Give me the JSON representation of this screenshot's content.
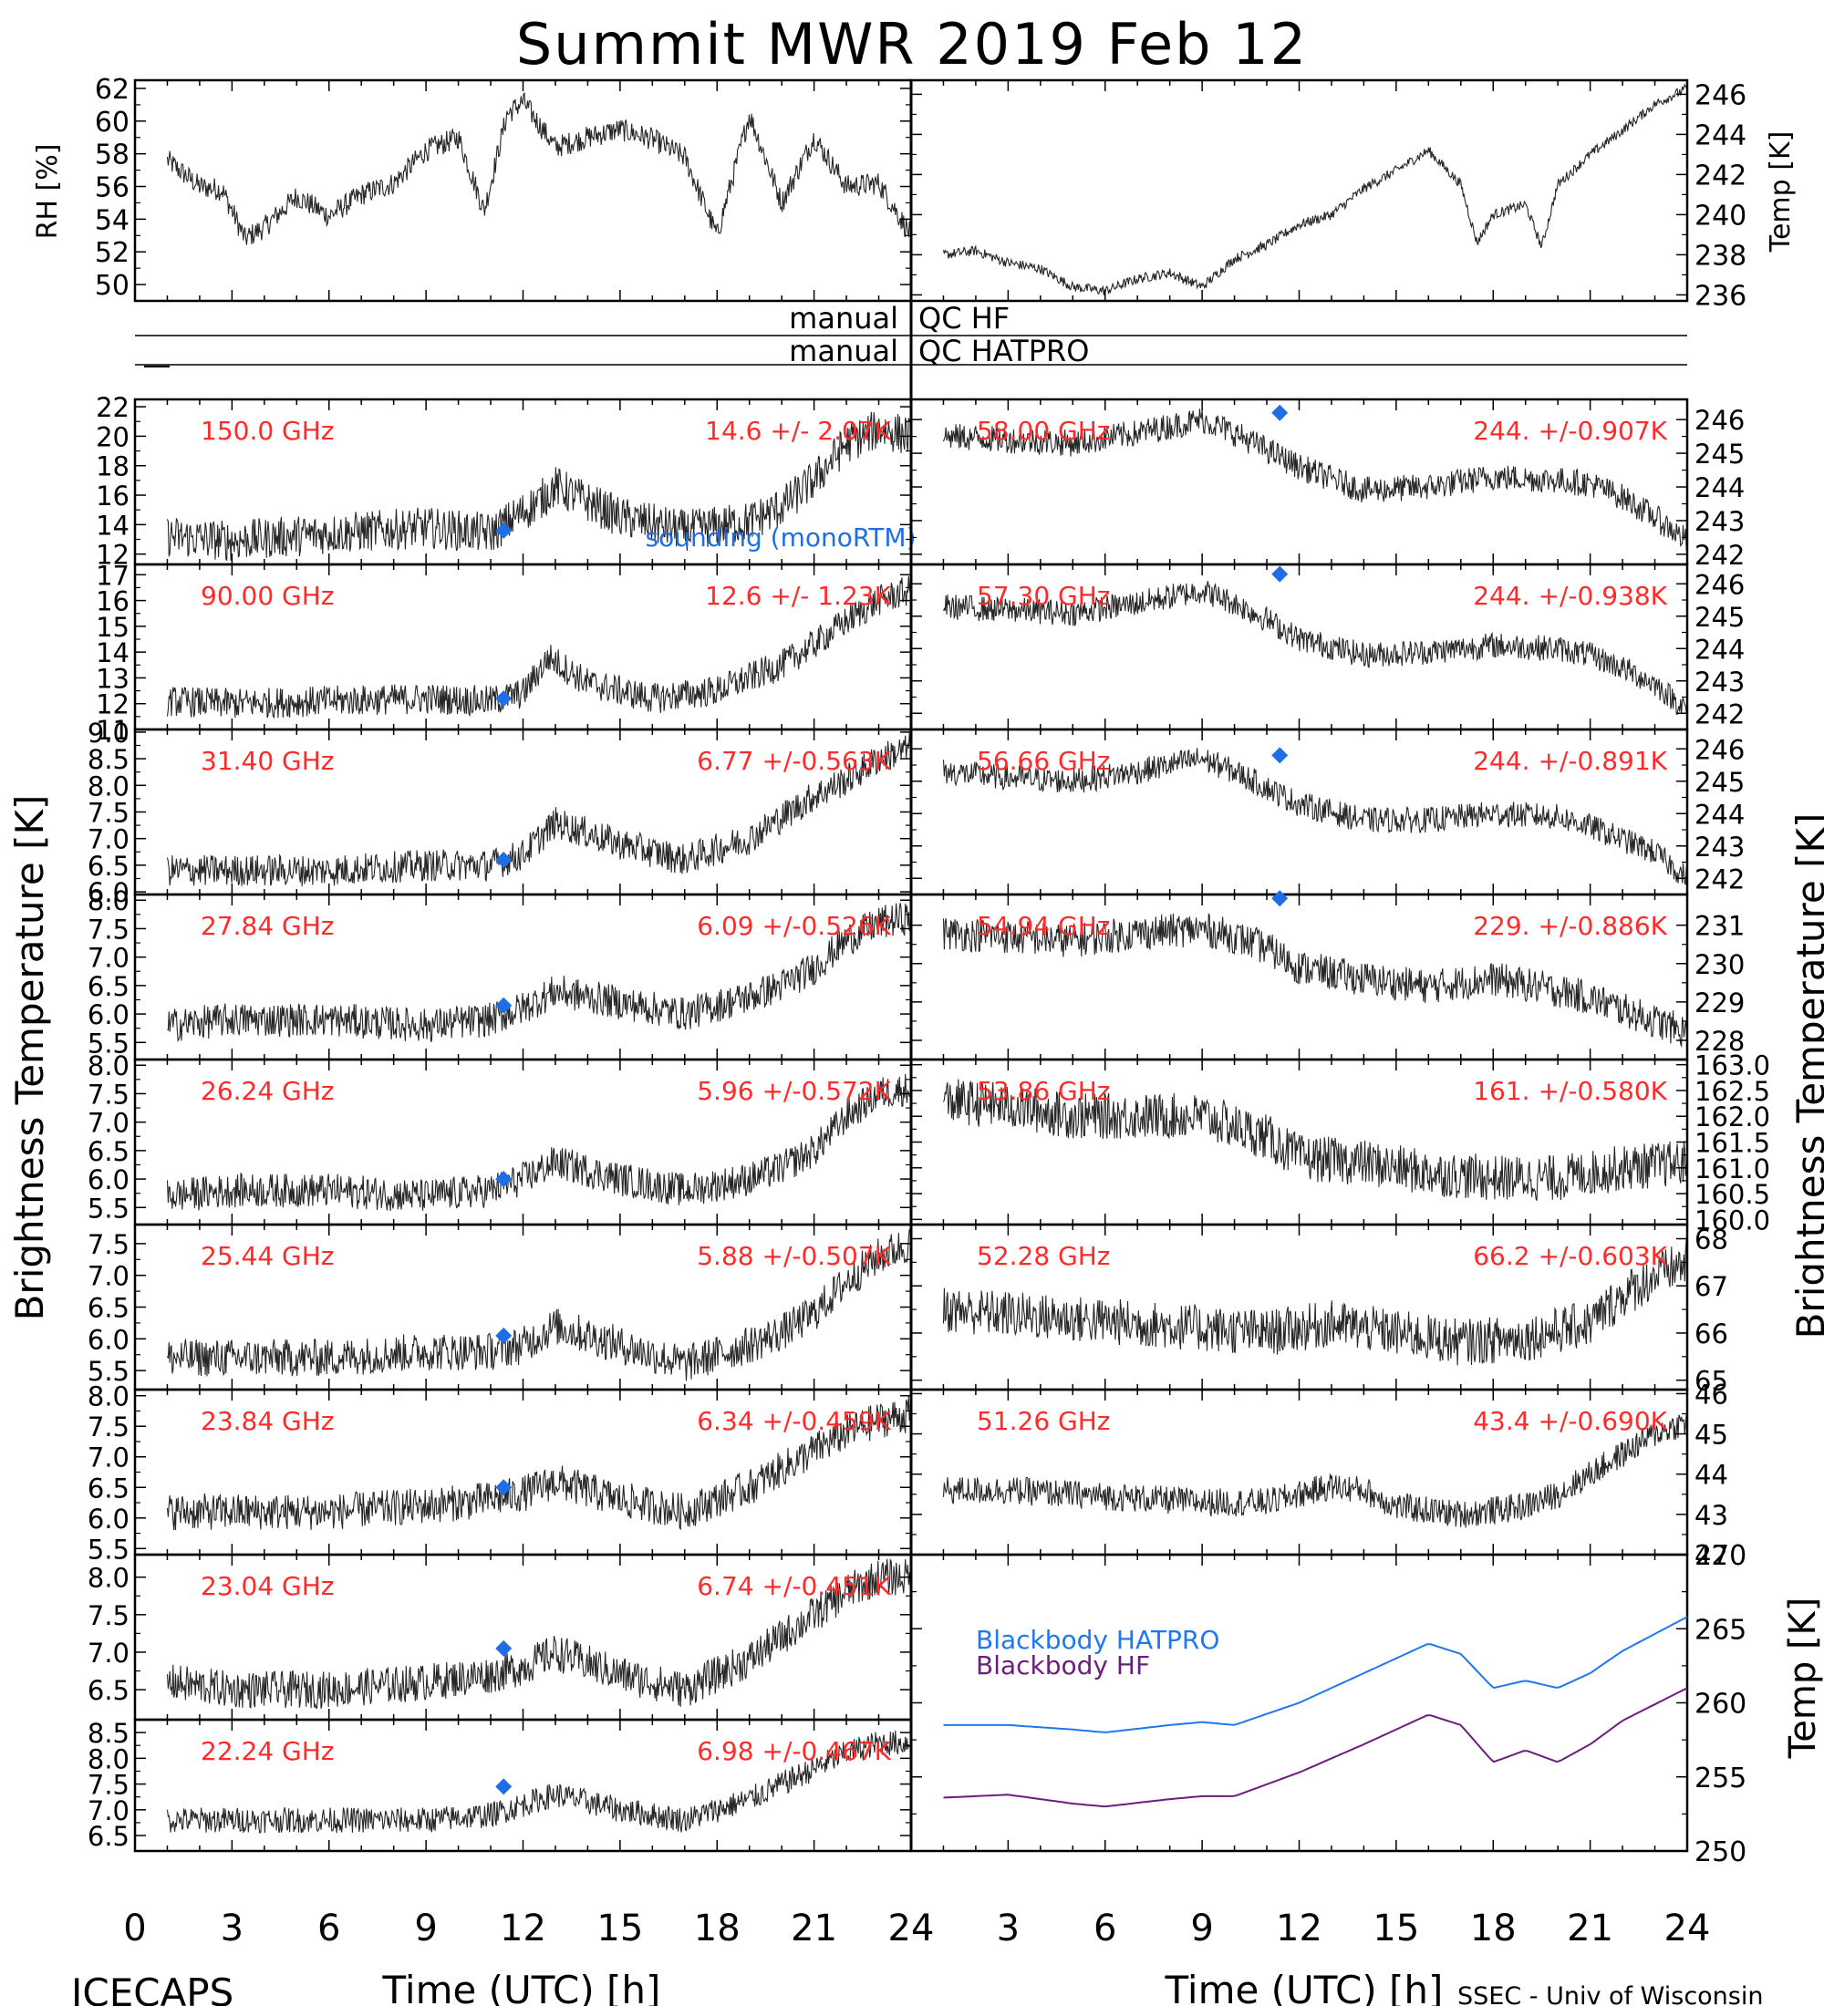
{
  "title": "Summit MWR 2019 Feb 12",
  "footer": {
    "left": "ICECAPS",
    "right": "SSEC - Univ of Wisconsin",
    "xlabel": "Time (UTC) [h]"
  },
  "side_labels": {
    "left": "Brightness Temperature [K]",
    "right": "Brightness Temperature [K]",
    "right_bottom": "Temp [K]"
  },
  "qc": {
    "hf_manual": "manual",
    "hf_label": "QC HF",
    "hatpro_manual": "manual",
    "hatpro_label": "QC HATPRO"
  },
  "colors": {
    "data": "#000000",
    "label": "#ff2a2a",
    "sounding": "#1e6fe6",
    "bb_hatpro": "#1e78f0",
    "bb_hf": "#6a1f7a"
  },
  "chart_data": [
    {
      "id": "rh",
      "type": "line",
      "ylabel": "RH [%]",
      "ylim": [
        49,
        62.5
      ],
      "xlim": [
        0,
        24
      ],
      "yticks": [
        50,
        52,
        54,
        56,
        58,
        60,
        62
      ],
      "x": [
        1.0,
        2.0,
        2.7,
        3.4,
        4.0,
        5.0,
        6.0,
        7.0,
        8.0,
        9.0,
        10.0,
        10.8,
        11.5,
        12.0,
        13.0,
        14.0,
        15.0,
        16.0,
        17.0,
        18.0,
        19.0,
        20.0,
        21.0,
        22.0,
        23.0,
        24.0
      ],
      "values": [
        57.6,
        56.0,
        55.8,
        52.8,
        53.5,
        55.4,
        54.2,
        55.5,
        56.2,
        58.2,
        59.0,
        54.5,
        60.4,
        61.2,
        58.4,
        59.0,
        59.5,
        58.9,
        57.8,
        53.0,
        60.4,
        55.0,
        59.0,
        56.0,
        56.2,
        53.0
      ]
    },
    {
      "id": "temp",
      "type": "line",
      "ylabel": "Temp [K]",
      "ylim": [
        235.7,
        246.7
      ],
      "xlim": [
        0,
        24
      ],
      "yticks": [
        236,
        238,
        240,
        242,
        244,
        246
      ],
      "x": [
        1.0,
        2.0,
        3.0,
        4.0,
        5.0,
        6.0,
        7.0,
        8.0,
        9.0,
        10.0,
        11.0,
        12.0,
        13.0,
        14.0,
        15.0,
        16.0,
        17.0,
        17.5,
        18.0,
        19.0,
        19.5,
        20.0,
        21.0,
        22.0,
        23.0,
        24.0
      ],
      "values": [
        238.0,
        238.2,
        237.6,
        237.3,
        236.4,
        236.2,
        236.8,
        237.1,
        236.4,
        237.8,
        238.5,
        239.5,
        240.0,
        241.3,
        242.2,
        243.2,
        241.5,
        238.6,
        240.0,
        240.5,
        238.4,
        241.5,
        243.0,
        244.2,
        245.5,
        246.3
      ]
    },
    {
      "id": "f150",
      "type": "line",
      "freq": "150.0 GHz",
      "stats": "14.6 +/-  2.07K",
      "ylim": [
        11.3,
        22.5
      ],
      "yticks": [
        12,
        14,
        16,
        18,
        20,
        22
      ],
      "sounding": {
        "x": 11.4,
        "y": 13.6
      },
      "noise": 1.4,
      "sounding_label": "sounding (monoRTM)",
      "x": [
        1,
        3,
        6,
        9,
        11,
        12.5,
        13,
        15,
        17,
        19,
        20,
        21,
        22,
        23,
        24
      ],
      "values": [
        13.2,
        12.9,
        13.4,
        13.8,
        13.4,
        15.6,
        16.6,
        14.5,
        13.6,
        14.2,
        15.2,
        17.0,
        19.5,
        20.5,
        20.0
      ]
    },
    {
      "id": "f90",
      "type": "line",
      "freq": "90.00 GHz",
      "stats": "12.6 +/-  1.23K",
      "ylim": [
        11.0,
        17.4
      ],
      "yticks": [
        11,
        12,
        13,
        14,
        15,
        16,
        17
      ],
      "sounding": {
        "x": 11.4,
        "y": 12.2
      },
      "noise": 0.6,
      "x": [
        1,
        3,
        6,
        9,
        11,
        12,
        12.8,
        14,
        16,
        18,
        20,
        21,
        22,
        23,
        24
      ],
      "values": [
        12.1,
        12.0,
        12.1,
        12.2,
        12.1,
        12.4,
        13.8,
        12.8,
        12.2,
        12.5,
        13.5,
        14.3,
        15.2,
        16.0,
        16.4
      ]
    },
    {
      "id": "f31",
      "type": "line",
      "freq": "31.40 GHz",
      "stats": "6.77 +/-0.563K",
      "ylim": [
        5.95,
        9.05
      ],
      "yticks": [
        6.0,
        6.5,
        7.0,
        7.5,
        8.0,
        8.5,
        9.0
      ],
      "sounding": {
        "x": 11.4,
        "y": 6.6
      },
      "noise": 0.3,
      "x": [
        1,
        3,
        6,
        9,
        11,
        12,
        13,
        15,
        17,
        19,
        20,
        21,
        22,
        23,
        24
      ],
      "values": [
        6.4,
        6.4,
        6.4,
        6.5,
        6.5,
        6.7,
        7.3,
        6.9,
        6.6,
        7.0,
        7.4,
        7.8,
        8.1,
        8.5,
        8.7
      ]
    },
    {
      "id": "f2784",
      "type": "line",
      "freq": "27.84 GHz",
      "stats": "6.09 +/-0.526K",
      "ylim": [
        5.2,
        8.1
      ],
      "yticks": [
        5.5,
        6.0,
        6.5,
        7.0,
        7.5,
        8.0
      ],
      "sounding": {
        "x": 11.4,
        "y": 6.15
      },
      "noise": 0.3,
      "x": [
        1,
        3,
        6,
        9,
        11,
        12,
        13,
        15,
        17,
        19,
        20,
        21,
        22,
        23,
        24
      ],
      "values": [
        5.8,
        5.9,
        5.9,
        5.8,
        5.9,
        6.1,
        6.4,
        6.2,
        6.0,
        6.3,
        6.5,
        6.8,
        7.3,
        7.6,
        7.7
      ]
    },
    {
      "id": "f2624",
      "type": "line",
      "freq": "26.24 GHz",
      "stats": "5.96 +/-0.572K",
      "ylim": [
        5.2,
        8.1
      ],
      "yticks": [
        5.5,
        6.0,
        6.5,
        7.0,
        7.5,
        8.0
      ],
      "sounding": {
        "x": 11.4,
        "y": 6.0
      },
      "noise": 0.3,
      "x": [
        1,
        3,
        6,
        9,
        11,
        12,
        13,
        15,
        17,
        19,
        20,
        21,
        22,
        23,
        24
      ],
      "values": [
        5.7,
        5.8,
        5.8,
        5.7,
        5.8,
        6.0,
        6.3,
        6.0,
        5.8,
        6.0,
        6.2,
        6.5,
        7.1,
        7.5,
        7.6
      ]
    },
    {
      "id": "f2544",
      "type": "line",
      "freq": "25.44 GHz",
      "stats": "5.88 +/-0.507K",
      "ylim": [
        5.2,
        7.8
      ],
      "yticks": [
        5.5,
        6.0,
        6.5,
        7.0,
        7.5
      ],
      "sounding": {
        "x": 11.4,
        "y": 6.05
      },
      "noise": 0.3,
      "x": [
        1,
        3,
        6,
        9,
        11,
        12,
        13,
        15,
        17,
        19,
        20,
        21,
        22,
        23,
        24
      ],
      "values": [
        5.7,
        5.7,
        5.7,
        5.8,
        5.8,
        5.9,
        6.2,
        5.9,
        5.6,
        5.9,
        6.1,
        6.4,
        6.9,
        7.3,
        7.5
      ]
    },
    {
      "id": "f2384",
      "type": "line",
      "freq": "23.84 GHz",
      "stats": "6.34 +/-0.459K",
      "ylim": [
        5.4,
        8.1
      ],
      "yticks": [
        5.5,
        6.0,
        6.5,
        7.0,
        7.5,
        8.0
      ],
      "sounding": {
        "x": 11.4,
        "y": 6.5
      },
      "noise": 0.3,
      "x": [
        1,
        3,
        6,
        9,
        11,
        12,
        13,
        15,
        17,
        19,
        20,
        21,
        22,
        23,
        24
      ],
      "values": [
        6.1,
        6.1,
        6.1,
        6.2,
        6.3,
        6.4,
        6.6,
        6.3,
        6.1,
        6.5,
        6.8,
        7.1,
        7.4,
        7.6,
        7.7
      ]
    },
    {
      "id": "f2304",
      "type": "line",
      "freq": "23.04 GHz",
      "stats": "6.74 +/-0.451K",
      "ylim": [
        6.1,
        8.3
      ],
      "yticks": [
        6.5,
        7.0,
        7.5,
        8.0
      ],
      "sounding": {
        "x": 11.4,
        "y": 7.05
      },
      "noise": 0.25,
      "x": [
        1,
        3,
        6,
        9,
        11,
        12,
        13,
        15,
        17,
        19,
        20,
        21,
        22,
        23,
        24
      ],
      "values": [
        6.6,
        6.5,
        6.5,
        6.6,
        6.7,
        6.8,
        7.0,
        6.7,
        6.5,
        6.9,
        7.2,
        7.5,
        7.8,
        8.0,
        8.0
      ]
    },
    {
      "id": "f2224",
      "type": "line",
      "freq": "22.24 GHz",
      "stats": "6.98 +/-0.467K",
      "ylim": [
        6.2,
        8.75
      ],
      "yticks": [
        6.5,
        7.0,
        7.5,
        8.0,
        8.5
      ],
      "sounding": {
        "x": 11.4,
        "y": 7.45
      },
      "noise": 0.25,
      "x": [
        1,
        3,
        6,
        9,
        11,
        12,
        13,
        15,
        17,
        19,
        20,
        21,
        22,
        23,
        24
      ],
      "values": [
        6.8,
        6.8,
        6.8,
        6.8,
        6.9,
        7.1,
        7.3,
        7.0,
        6.8,
        7.2,
        7.5,
        7.8,
        8.1,
        8.3,
        8.3
      ]
    },
    {
      "id": "f5800",
      "type": "line",
      "freq": "58.00 GHz",
      "stats": "244. +/-0.907K",
      "ylim": [
        241.7,
        246.6
      ],
      "yticks": [
        242,
        243,
        244,
        245,
        246
      ],
      "sounding": {
        "x": 11.4,
        "y": 246.2
      },
      "noise": 0.4,
      "x": [
        1,
        3,
        5,
        7,
        9,
        10,
        11,
        12,
        14,
        16,
        18,
        20,
        21,
        22,
        23,
        24
      ],
      "values": [
        245.5,
        245.4,
        245.3,
        245.6,
        246.0,
        245.6,
        245.1,
        244.6,
        243.9,
        244.0,
        244.3,
        244.2,
        244.1,
        243.7,
        243.1,
        242.4
      ]
    },
    {
      "id": "f5730",
      "type": "line",
      "freq": "57.30 GHz",
      "stats": "244. +/-0.938K",
      "ylim": [
        241.5,
        246.6
      ],
      "yticks": [
        242,
        243,
        244,
        245,
        246
      ],
      "sounding": {
        "x": 11.4,
        "y": 246.3
      },
      "noise": 0.4,
      "x": [
        1,
        3,
        5,
        7,
        9,
        10,
        11,
        12,
        14,
        16,
        18,
        20,
        21,
        22,
        23,
        24
      ],
      "values": [
        245.3,
        245.2,
        245.1,
        245.4,
        245.8,
        245.4,
        244.9,
        244.3,
        243.8,
        243.9,
        244.1,
        244.0,
        243.8,
        243.4,
        242.9,
        242.1
      ]
    },
    {
      "id": "f5666",
      "type": "line",
      "freq": "56.66 GHz",
      "stats": "244. +/-0.891K",
      "ylim": [
        241.5,
        246.6
      ],
      "yticks": [
        242,
        243,
        244,
        245,
        246
      ],
      "sounding": {
        "x": 11.4,
        "y": 245.8
      },
      "noise": 0.4,
      "x": [
        1,
        3,
        5,
        7,
        9,
        10,
        11,
        12,
        14,
        16,
        18,
        20,
        21,
        22,
        23,
        24
      ],
      "values": [
        245.3,
        245.1,
        245.0,
        245.3,
        245.7,
        245.3,
        244.8,
        244.3,
        243.8,
        243.8,
        244.0,
        243.9,
        243.6,
        243.2,
        242.8,
        242.0
      ]
    },
    {
      "id": "f5496",
      "type": "line",
      "freq": "54.94 GHz",
      "stats": "229. +/-0.886K",
      "ylim": [
        227.5,
        231.8
      ],
      "yticks": [
        228,
        229,
        230,
        231
      ],
      "sounding": {
        "x": 11.4,
        "y": 231.7
      },
      "noise": 0.45,
      "x": [
        1,
        3,
        5,
        7,
        9,
        10,
        11,
        12,
        14,
        16,
        18,
        20,
        21,
        22,
        23,
        24
      ],
      "values": [
        230.8,
        230.7,
        230.6,
        230.8,
        230.9,
        230.7,
        230.4,
        229.9,
        229.6,
        229.4,
        229.6,
        229.3,
        229.1,
        228.8,
        228.5,
        228.2
      ]
    },
    {
      "id": "f5386",
      "type": "line",
      "freq": "53.86 GHz",
      "stats": "161. +/-0.580K",
      "ylim": [
        159.9,
        163.1
      ],
      "yticks": [
        160.0,
        160.5,
        161.0,
        161.5,
        162.0,
        162.5,
        163.0
      ],
      "sounding": null,
      "noise": 0.45,
      "x": [
        1,
        3,
        5,
        7,
        9,
        10,
        11,
        12,
        14,
        16,
        18,
        20,
        22,
        24
      ],
      "values": [
        162.3,
        162.2,
        162.0,
        162.0,
        162.0,
        161.8,
        161.6,
        161.2,
        161.1,
        160.9,
        160.8,
        160.8,
        161.0,
        161.1
      ]
    },
    {
      "id": "f5228",
      "type": "line",
      "freq": "52.28 GHz",
      "stats": "66.2 +/-0.603K",
      "ylim": [
        64.8,
        68.3
      ],
      "yticks": [
        65,
        66,
        67,
        68
      ],
      "sounding": null,
      "noise": 0.5,
      "x": [
        1,
        3,
        5,
        7,
        9,
        11,
        13,
        15,
        17,
        19,
        21,
        22,
        23,
        24
      ],
      "values": [
        66.5,
        66.4,
        66.3,
        66.2,
        66.1,
        66.0,
        66.2,
        66.0,
        65.8,
        65.9,
        66.2,
        66.8,
        67.2,
        67.5
      ]
    },
    {
      "id": "f5126",
      "type": "line",
      "freq": "51.26 GHz",
      "stats": "43.4 +/-0.690K",
      "ylim": [
        42.0,
        46.1
      ],
      "yticks": [
        42,
        43,
        44,
        45,
        46
      ],
      "sounding": null,
      "noise": 0.35,
      "x": [
        1,
        3,
        5,
        7,
        9,
        11,
        12,
        13,
        14,
        15,
        17,
        19,
        20,
        21,
        22,
        23,
        24
      ],
      "values": [
        43.6,
        43.6,
        43.5,
        43.4,
        43.3,
        43.3,
        43.5,
        43.7,
        43.6,
        43.2,
        43.0,
        43.2,
        43.5,
        44.0,
        44.5,
        45.0,
        45.3
      ]
    },
    {
      "id": "blackbody",
      "type": "line",
      "ylabel": "Temp [K]",
      "ylim": [
        250,
        270
      ],
      "xlim": [
        0,
        24
      ],
      "yticks": [
        250,
        255,
        260,
        265,
        270
      ],
      "series": [
        {
          "name": "Blackbody HATPRO",
          "x": [
            1,
            3,
            5,
            6,
            8,
            9,
            10,
            12,
            14,
            16,
            17,
            18,
            19,
            20,
            21,
            22,
            24
          ],
          "values": [
            258.5,
            258.5,
            258.2,
            258.0,
            258.5,
            258.7,
            258.5,
            260.0,
            262.0,
            264.0,
            263.3,
            261.0,
            261.5,
            261.0,
            262.0,
            263.5,
            265.8
          ]
        },
        {
          "name": "Blackbody HF",
          "x": [
            1,
            3,
            5,
            6,
            8,
            9,
            10,
            12,
            14,
            16,
            17,
            18,
            19,
            20,
            21,
            22,
            24
          ],
          "values": [
            253.6,
            253.8,
            253.2,
            253.0,
            253.5,
            253.7,
            253.7,
            255.3,
            257.2,
            259.2,
            258.5,
            256.0,
            256.8,
            256.0,
            257.2,
            258.8,
            261.0
          ]
        }
      ]
    }
  ]
}
